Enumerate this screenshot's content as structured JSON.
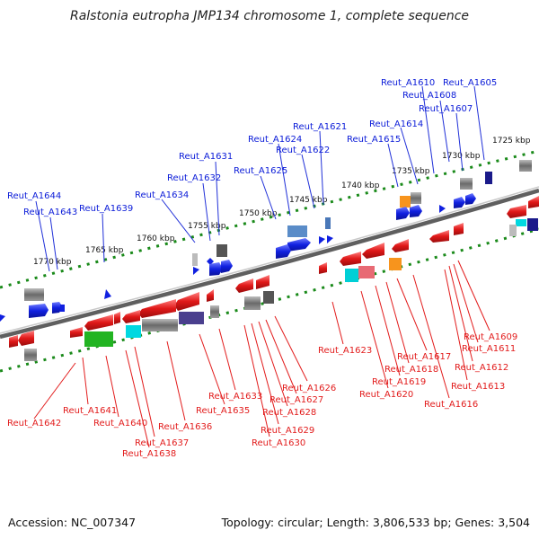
{
  "header": {
    "title": "Ralstonia eutropha JMP134 chromosome 1, complete sequence"
  },
  "footer": {
    "accession": "Accession: NC_007347",
    "topology": "Topology: circular; Length: 3,806,533 bp; Genes: 3,504"
  },
  "scale_ticks": [
    "1725 kbp",
    "1730 kbp",
    "1735 kbp",
    "1740 kbp",
    "1745 kbp",
    "1750 kbp",
    "1755 kbp",
    "1760 kbp",
    "1765 kbp",
    "1770 kbp"
  ],
  "top_labels": [
    "Reut_A1605",
    "Reut_A1607",
    "Reut_A1608",
    "Reut_A1610",
    "Reut_A1614",
    "Reut_A1615",
    "Reut_A1621",
    "Reut_A1622",
    "Reut_A1624",
    "Reut_A1625",
    "Reut_A1631",
    "Reut_A1632",
    "Reut_A1634",
    "Reut_A1639",
    "Reut_A1643",
    "Reut_A1644"
  ],
  "bottom_labels": [
    "Reut_A1609",
    "Reut_A1611",
    "Reut_A1612",
    "Reut_A1613",
    "Reut_A1616",
    "Reut_A1617",
    "Reut_A1618",
    "Reut_A1619",
    "Reut_A1620",
    "Reut_A1623",
    "Reut_A1626",
    "Reut_A1627",
    "Reut_A1628",
    "Reut_A1629",
    "Reut_A1630",
    "Reut_A1633",
    "Reut_A1635",
    "Reut_A1636",
    "Reut_A1637",
    "Reut_A1638",
    "Reut_A1640",
    "Reut_A1641",
    "Reut_A1642"
  ],
  "colors": {
    "forward_gene": "#1020e0",
    "reverse_gene": "#e01818",
    "backbone": "#777777",
    "tick_dots": "#1a8a1a"
  }
}
